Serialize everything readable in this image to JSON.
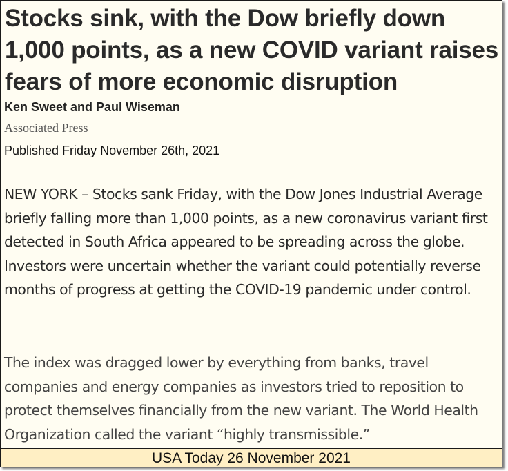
{
  "article": {
    "headline": "Stocks sink, with the Dow briefly down 1,000 points, as a new COVID variant raises fears of more economic disruption",
    "authors": "Ken Sweet and Paul Wiseman",
    "source": "Associated Press",
    "published": "Published Friday November 26th, 2021",
    "paragraphs": [
      "NEW YORK – Stocks sank Friday, with the Dow Jones Industrial Average briefly falling more than 1,000 points, as a new coronavirus variant first detected in South Africa appeared to be spreading across the globe. Investors were uncertain whether the variant could potentially reverse months of progress at getting the COVID-19 pandemic under control.",
      "The index was dragged lower by everything from banks, travel companies and energy companies as investors tried to reposition to protect themselves financially from the new variant. The World Health Organization called the variant “highly transmissible.”"
    ]
  },
  "footer": {
    "caption": "USA Today 26 November 2021"
  }
}
